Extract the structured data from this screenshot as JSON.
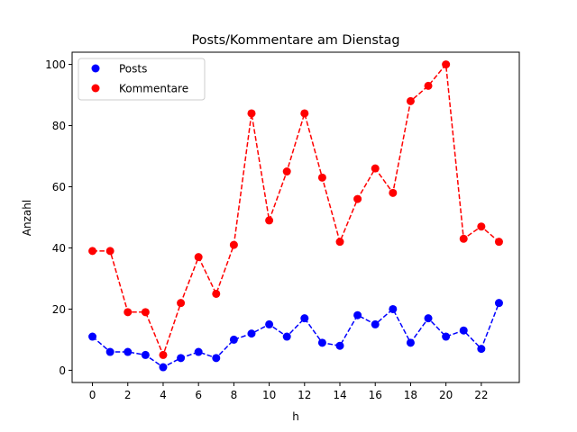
{
  "chart_data": {
    "type": "line",
    "title": "Posts/Kommentare am Dienstag",
    "xlabel": "h",
    "ylabel": "Anzahl",
    "x": [
      0,
      1,
      2,
      3,
      4,
      5,
      6,
      7,
      8,
      9,
      10,
      11,
      12,
      13,
      14,
      15,
      16,
      17,
      18,
      19,
      20,
      21,
      22,
      23
    ],
    "xticks": [
      0,
      2,
      4,
      6,
      8,
      10,
      12,
      14,
      16,
      18,
      20,
      22
    ],
    "yticks": [
      0,
      20,
      40,
      60,
      80,
      100
    ],
    "xlim": [
      -1.15,
      24.15
    ],
    "ylim": [
      -4,
      104
    ],
    "grid": false,
    "legend_position": "upper left",
    "series": [
      {
        "name": "Posts",
        "color": "#0000ff",
        "linestyle": "dashed",
        "marker": "circle",
        "values": [
          11,
          6,
          6,
          5,
          1,
          4,
          6,
          4,
          10,
          12,
          15,
          11,
          17,
          9,
          8,
          18,
          15,
          20,
          9,
          17,
          11,
          13,
          7,
          22
        ]
      },
      {
        "name": "Kommentare",
        "color": "#ff0000",
        "linestyle": "dashed",
        "marker": "circle",
        "values": [
          39,
          39,
          19,
          19,
          5,
          22,
          37,
          25,
          41,
          84,
          49,
          65,
          84,
          63,
          42,
          56,
          66,
          58,
          88,
          93,
          100,
          43,
          47,
          42
        ]
      }
    ]
  }
}
